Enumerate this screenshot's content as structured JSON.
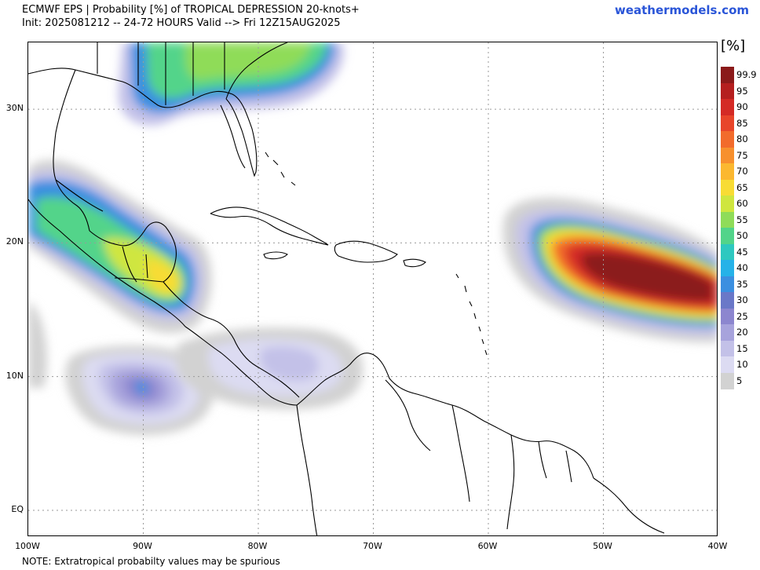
{
  "header": {
    "title": "ECMWF EPS | Probability [%] of TROPICAL DEPRESSION 20-knots+",
    "subtitle": "Init: 2025081212 -- 24-72 HOURS Valid --> Fri 12Z15AUG2025",
    "brand": "weathermodels.com"
  },
  "map": {
    "lon_range": [
      -100,
      -40
    ],
    "lat_range": [
      -2,
      35
    ],
    "lat_ticks": [
      {
        "value": 30,
        "label": "30N"
      },
      {
        "value": 20,
        "label": "20N"
      },
      {
        "value": 10,
        "label": "10N"
      },
      {
        "value": 0,
        "label": "EQ"
      }
    ],
    "lon_ticks": [
      {
        "value": -100,
        "label": "100W"
      },
      {
        "value": -90,
        "label": "90W"
      },
      {
        "value": -80,
        "label": "80W"
      },
      {
        "value": -70,
        "label": "70W"
      },
      {
        "value": -60,
        "label": "60W"
      },
      {
        "value": -50,
        "label": "50W"
      },
      {
        "value": -40,
        "label": "40W"
      }
    ],
    "grid": true,
    "probability_areas": [
      {
        "region": "Central Atlantic",
        "lon_range": [
          -55,
          -40
        ],
        "lat_range": [
          13,
          22
        ],
        "max_percent": 99.9
      },
      {
        "region": "Western Caribbean / Yucatan",
        "lon_range": [
          -100,
          -85
        ],
        "lat_range": [
          14,
          25
        ],
        "max_percent": 65
      },
      {
        "region": "US Southeast",
        "lon_range": [
          -90,
          -74
        ],
        "lat_range": [
          29,
          35
        ],
        "max_percent": 55
      },
      {
        "region": "Eastern Pacific",
        "lon_range": [
          -94,
          -85
        ],
        "lat_range": [
          8,
          12
        ],
        "max_percent": 30
      },
      {
        "region": "Central America / Southwest Caribbean",
        "lon_range": [
          -85,
          -72
        ],
        "lat_range": [
          9,
          13
        ],
        "max_percent": 15
      }
    ]
  },
  "legend": {
    "unit": "[%]",
    "levels": [
      {
        "label": "99.9",
        "color": "#8b1a1a"
      },
      {
        "label": "95",
        "color": "#b51f1f"
      },
      {
        "label": "90",
        "color": "#d42a25"
      },
      {
        "label": "85",
        "color": "#e8452a"
      },
      {
        "label": "80",
        "color": "#f26b2c"
      },
      {
        "label": "75",
        "color": "#f7902e"
      },
      {
        "label": "70",
        "color": "#fbb830"
      },
      {
        "label": "65",
        "color": "#f8dc34"
      },
      {
        "label": "60",
        "color": "#cfe63f"
      },
      {
        "label": "55",
        "color": "#8fdc59"
      },
      {
        "label": "50",
        "color": "#52d48a"
      },
      {
        "label": "45",
        "color": "#2ec8c0"
      },
      {
        "label": "40",
        "color": "#26b2e8"
      },
      {
        "label": "35",
        "color": "#3b8fe0"
      },
      {
        "label": "30",
        "color": "#6a78c8"
      },
      {
        "label": "25",
        "color": "#8c86cf"
      },
      {
        "label": "20",
        "color": "#a7a3dc"
      },
      {
        "label": "15",
        "color": "#c3c1e8"
      },
      {
        "label": "10",
        "color": "#dcdbf2"
      },
      {
        "label": "5",
        "color": "#d2d2d2"
      }
    ]
  },
  "footnote": "NOTE: Extratropical probabilty values may be spurious"
}
